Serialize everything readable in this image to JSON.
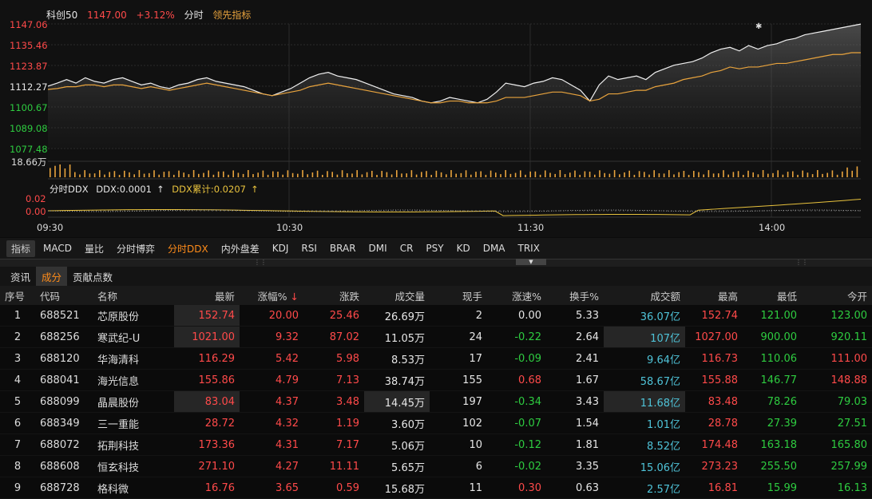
{
  "header": {
    "symbol": "科创50",
    "price": "1147.00",
    "change": "+3.12%",
    "mode": "分时",
    "indicator": "领先指标"
  },
  "price_axis": [
    "1147.06",
    "1135.46",
    "1123.87",
    "1112.27",
    "1100.67",
    "1089.08",
    "1077.48"
  ],
  "volume_label": "18.66万",
  "ddx": {
    "title": "分时DDX",
    "ddx_value": "DDX:0.0001",
    "ddx_cum": "DDX累计:0.0207",
    "axis": [
      "0.02",
      "0.00"
    ]
  },
  "time_axis": [
    "09:30",
    "10:30",
    "11:30",
    "14:00"
  ],
  "indicator_tabs": [
    "指标",
    "MACD",
    "量比",
    "分时博弈",
    "分时DDX",
    "内外盘差",
    "KDJ",
    "RSI",
    "BRAR",
    "DMI",
    "CR",
    "PSY",
    "KD",
    "DMA",
    "TRIX"
  ],
  "section_tabs": [
    "资讯",
    "成分",
    "贡献点数"
  ],
  "table": {
    "headers": [
      "序号",
      "代码",
      "名称",
      "最新",
      "涨幅%",
      "涨跌",
      "成交量",
      "现手",
      "涨速%",
      "换手%",
      "成交额",
      "最高",
      "最低",
      "今开"
    ],
    "rows": [
      [
        "1",
        "688521",
        "芯原股份",
        "152.74",
        "20.00",
        "25.46",
        "26.69万",
        "2",
        "0.00",
        "5.33",
        "36.07亿",
        "152.74",
        "121.00",
        "123.00"
      ],
      [
        "2",
        "688256",
        "寒武纪-U",
        "1021.00",
        "9.32",
        "87.02",
        "11.05万",
        "24",
        "-0.22",
        "2.64",
        "107亿",
        "1027.00",
        "900.00",
        "920.11"
      ],
      [
        "3",
        "688120",
        "华海清科",
        "116.29",
        "5.42",
        "5.98",
        "8.53万",
        "17",
        "-0.09",
        "2.41",
        "9.64亿",
        "116.73",
        "110.06",
        "111.00"
      ],
      [
        "4",
        "688041",
        "海光信息",
        "155.86",
        "4.79",
        "7.13",
        "38.74万",
        "155",
        "0.68",
        "1.67",
        "58.67亿",
        "155.88",
        "146.77",
        "148.88"
      ],
      [
        "5",
        "688099",
        "晶晨股份",
        "83.04",
        "4.37",
        "3.48",
        "14.45万",
        "197",
        "-0.34",
        "3.43",
        "11.68亿",
        "83.48",
        "78.26",
        "79.03"
      ],
      [
        "6",
        "688349",
        "三一重能",
        "28.72",
        "4.32",
        "1.19",
        "3.60万",
        "102",
        "-0.07",
        "1.54",
        "1.01亿",
        "28.78",
        "27.39",
        "27.51"
      ],
      [
        "7",
        "688072",
        "拓荆科技",
        "173.36",
        "4.31",
        "7.17",
        "5.06万",
        "10",
        "-0.12",
        "1.81",
        "8.52亿",
        "174.48",
        "163.18",
        "165.80"
      ],
      [
        "8",
        "688608",
        "恒玄科技",
        "271.10",
        "4.27",
        "11.11",
        "5.65万",
        "6",
        "-0.02",
        "3.35",
        "15.06亿",
        "273.23",
        "255.50",
        "257.99"
      ],
      [
        "9",
        "688728",
        "格科微",
        "16.76",
        "3.65",
        "0.59",
        "15.68万",
        "11",
        "0.30",
        "0.63",
        "2.57亿",
        "16.81",
        "15.99",
        "16.13"
      ]
    ]
  },
  "chart_data": {
    "type": "line",
    "series": [
      {
        "values": [
          1112.3,
          1114,
          1116,
          1114,
          1117,
          1115,
          1114,
          1116,
          1117,
          1115,
          1113,
          1114,
          1112,
          1111,
          1113,
          1114,
          1116,
          1117,
          1115,
          1114,
          1113,
          1112,
          1110,
          1108,
          1107,
          1109,
          1111,
          1114,
          1117,
          1119,
          1120,
          1118,
          1117,
          1116,
          1114,
          1112,
          1110,
          1108,
          1107,
          1106,
          1104,
          1103,
          1104,
          1106,
          1105,
          1104,
          1103,
          1105,
          1109,
          1114,
          1113,
          1112,
          1114,
          1115,
          1117,
          1116,
          1113,
          1110,
          1104,
          1113,
          1118,
          1116,
          1117,
          1118,
          1116,
          1120,
          1122,
          1124,
          1125,
          1126,
          1128,
          1131,
          1133,
          1134,
          1132,
          1135,
          1133,
          1135,
          1136,
          1138,
          1139,
          1141,
          1142,
          1143,
          1144,
          1145,
          1146,
          1147
        ]
      },
      {
        "values": [
          1110.5,
          1111,
          1112,
          1112,
          1113,
          1113,
          1112,
          1113,
          1113,
          1112,
          1111,
          1112,
          1111,
          1110,
          1111,
          1112,
          1113,
          1114,
          1113,
          1112,
          1111,
          1110,
          1109,
          1108,
          1107,
          1108,
          1109,
          1110,
          1112,
          1113,
          1114,
          1113,
          1112,
          1111,
          1110,
          1109,
          1108,
          1107,
          1106,
          1105,
          1104,
          1103,
          1103,
          1104,
          1104,
          1103,
          1103,
          1103,
          1104,
          1106,
          1106,
          1106,
          1107,
          1108,
          1109,
          1109,
          1108,
          1107,
          1104,
          1105,
          1108,
          1108,
          1109,
          1110,
          1110,
          1112,
          1113,
          1114,
          1116,
          1117,
          1118,
          1120,
          1121,
          1123,
          1122,
          1123,
          1123,
          1124,
          1125,
          1125,
          1126,
          1127,
          1128,
          1129,
          1130,
          1130,
          1131,
          1131
        ]
      }
    ],
    "ylim": [
      1077.48,
      1147.06
    ]
  }
}
